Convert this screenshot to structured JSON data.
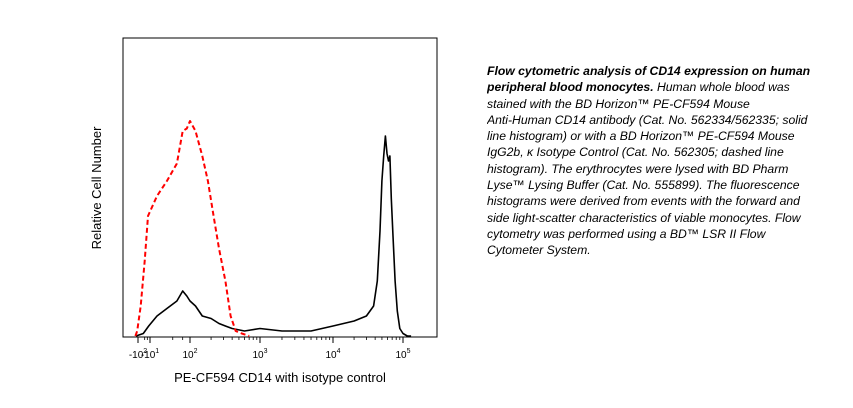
{
  "chart_data": {
    "type": "line",
    "xlabel": "PE-CF594 CD14 with isotype control",
    "ylabel": "Relative Cell Number",
    "x_scale": "biexponential",
    "x_ticks": [
      {
        "label": "-10",
        "sup": "2",
        "value": -100
      },
      {
        "label": "-10",
        "sup": "1",
        "value": -10
      },
      {
        "label": "10",
        "sup": "2",
        "value": 100
      },
      {
        "label": "10",
        "sup": "3",
        "value": 1000
      },
      {
        "label": "10",
        "sup": "4",
        "value": 10000
      },
      {
        "label": "10",
        "sup": "5",
        "value": 100000
      }
    ],
    "grid": false,
    "legend": "none",
    "series": [
      {
        "style": "solid",
        "color": "#000000",
        "x": [
          -180,
          -60,
          -20,
          0,
          20,
          40,
          60,
          80,
          100,
          120,
          150,
          200,
          260,
          320,
          400,
          600,
          1000,
          2000,
          5000,
          10000,
          20000,
          30000,
          38000,
          43000,
          47000,
          50000,
          53000,
          56000,
          59000,
          62000,
          65000,
          68000,
          72000,
          77000,
          83000,
          90000,
          100000,
          115000,
          130000
        ],
        "y": [
          0,
          1,
          4,
          8,
          11,
          14,
          18,
          16,
          14,
          12,
          8,
          7,
          5,
          4,
          3,
          2,
          3,
          2,
          2,
          4,
          6,
          8,
          12,
          22,
          42,
          62,
          72,
          80,
          73,
          70,
          72,
          55,
          40,
          22,
          10,
          3,
          1,
          0,
          0
        ]
      },
      {
        "style": "dashed",
        "color": "#ff0000",
        "x": [
          -200,
          -130,
          -80,
          -50,
          -25,
          0,
          20,
          40,
          60,
          80,
          100,
          120,
          150,
          180,
          220,
          260,
          320,
          380,
          450,
          550,
          700
        ],
        "y": [
          0,
          2,
          12,
          30,
          48,
          56,
          62,
          69,
          82,
          83,
          86,
          82,
          72,
          62,
          47,
          35,
          22,
          8,
          2,
          1,
          0
        ]
      }
    ]
  },
  "caption": {
    "bold_lines": [
      "Flow cytometric analysis of CD14 expression on human",
      "peripheral blood monocytes."
    ],
    "tail": " Human whole blood was",
    "lines": [
      "stained with the BD Horizon™ PE-CF594 Mouse",
      "Anti-Human CD14 antibody (Cat. No. 562334/562335; solid",
      "line histogram) or with a BD Horizon™ PE-CF594 Mouse",
      "IgG2b, κ Isotype Control (Cat. No. 562305; dashed line",
      "histogram). The erythrocytes were lysed with BD Pharm",
      "Lyse™ Lysing Buffer (Cat. No. 555899). The fluorescence",
      "histograms were derived from events with the forward and",
      "side light-scatter characteristics of viable monocytes. Flow",
      "cytometry was performed using a BD™ LSR II Flow",
      "Cytometer System."
    ]
  }
}
